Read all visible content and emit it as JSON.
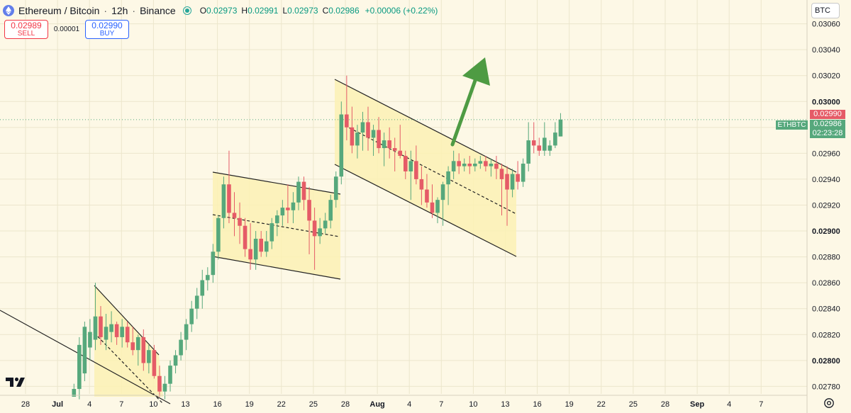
{
  "header": {
    "symbol": "Ethereum / Bitcoin",
    "interval": "12h",
    "exchange": "Binance",
    "open_label": "O",
    "open": "0.02973",
    "high_label": "H",
    "high": "0.02991",
    "low_label": "L",
    "low": "0.02973",
    "close_label": "C",
    "close": "0.02986",
    "change": "+0.00006 (+0.22%)"
  },
  "trade": {
    "sell_price": "0.02989",
    "sell_label": "SELL",
    "spread": "0.00001",
    "buy_price": "0.02990",
    "buy_label": "BUY"
  },
  "currency_label": "BTC",
  "ticker_label": "ETHBTC",
  "price_tags": {
    "ask": "0.02990",
    "last": "0.02986",
    "countdown": "02:23:28"
  },
  "colors": {
    "up": "#56a87c",
    "down": "#e55b67",
    "background": "#fdf8e6",
    "channel_fill": "#fbf1b4",
    "arrow": "#4e9b43"
  },
  "chart_data": {
    "type": "candlestick",
    "y_ticks": [
      "0.03060",
      "0.03040",
      "0.03020",
      "0.03000",
      "0.02980",
      "0.02960",
      "0.02940",
      "0.02920",
      "0.02900",
      "0.02880",
      "0.02860",
      "0.02840",
      "0.02820",
      "0.02800",
      "0.02780"
    ],
    "y_bold_ticks": [
      "0.03000",
      "0.02900",
      "0.02800"
    ],
    "ylim": [
      0.02772,
      0.03074
    ],
    "x_ticks": [
      "28",
      "Jul",
      "4",
      "7",
      "10",
      "13",
      "16",
      "19",
      "22",
      "25",
      "28",
      "Aug",
      "4",
      "7",
      "10",
      "13",
      "16",
      "19",
      "22",
      "25",
      "28",
      "Sep",
      "4",
      "7"
    ],
    "x_bold_ticks": [
      "Jul",
      "Aug",
      "Sep"
    ],
    "grid": true,
    "candles": [
      {
        "o": 0.02772,
        "h": 0.02782,
        "l": 0.02772,
        "c": 0.02778
      },
      {
        "o": 0.02778,
        "h": 0.02818,
        "l": 0.0277,
        "c": 0.02812
      },
      {
        "o": 0.0279,
        "h": 0.0283,
        "l": 0.02784,
        "c": 0.02826
      },
      {
        "o": 0.0281,
        "h": 0.02832,
        "l": 0.028,
        "c": 0.02822
      },
      {
        "o": 0.02816,
        "h": 0.0286,
        "l": 0.02808,
        "c": 0.02834
      },
      {
        "o": 0.02834,
        "h": 0.02842,
        "l": 0.02812,
        "c": 0.02818
      },
      {
        "o": 0.02816,
        "h": 0.02836,
        "l": 0.02808,
        "c": 0.02826
      },
      {
        "o": 0.02822,
        "h": 0.02838,
        "l": 0.02814,
        "c": 0.02828
      },
      {
        "o": 0.02828,
        "h": 0.0283,
        "l": 0.02812,
        "c": 0.02818
      },
      {
        "o": 0.02818,
        "h": 0.02832,
        "l": 0.0281,
        "c": 0.02826
      },
      {
        "o": 0.02826,
        "h": 0.0283,
        "l": 0.0281,
        "c": 0.02814
      },
      {
        "o": 0.02814,
        "h": 0.02826,
        "l": 0.02804,
        "c": 0.02808
      },
      {
        "o": 0.02808,
        "h": 0.0282,
        "l": 0.02796,
        "c": 0.02818
      },
      {
        "o": 0.02818,
        "h": 0.02824,
        "l": 0.02792,
        "c": 0.02798
      },
      {
        "o": 0.02798,
        "h": 0.02812,
        "l": 0.0279,
        "c": 0.02808
      },
      {
        "o": 0.02808,
        "h": 0.02812,
        "l": 0.02786,
        "c": 0.02788
      },
      {
        "o": 0.02788,
        "h": 0.02796,
        "l": 0.02772,
        "c": 0.02776
      },
      {
        "o": 0.02776,
        "h": 0.02788,
        "l": 0.0277,
        "c": 0.02782
      },
      {
        "o": 0.02782,
        "h": 0.028,
        "l": 0.02776,
        "c": 0.02796
      },
      {
        "o": 0.02796,
        "h": 0.02808,
        "l": 0.0279,
        "c": 0.02804
      },
      {
        "o": 0.02804,
        "h": 0.02822,
        "l": 0.028,
        "c": 0.02816
      },
      {
        "o": 0.02816,
        "h": 0.02832,
        "l": 0.02808,
        "c": 0.02828
      },
      {
        "o": 0.02828,
        "h": 0.02846,
        "l": 0.02822,
        "c": 0.0284
      },
      {
        "o": 0.0284,
        "h": 0.02856,
        "l": 0.02832,
        "c": 0.0285
      },
      {
        "o": 0.0285,
        "h": 0.0287,
        "l": 0.0284,
        "c": 0.02862
      },
      {
        "o": 0.02862,
        "h": 0.02872,
        "l": 0.02854,
        "c": 0.02866
      },
      {
        "o": 0.02866,
        "h": 0.0289,
        "l": 0.0286,
        "c": 0.02884
      },
      {
        "o": 0.02884,
        "h": 0.02912,
        "l": 0.02878,
        "c": 0.0291
      },
      {
        "o": 0.0291,
        "h": 0.02942,
        "l": 0.02902,
        "c": 0.02936
      },
      {
        "o": 0.02936,
        "h": 0.02962,
        "l": 0.02906,
        "c": 0.02914
      },
      {
        "o": 0.02914,
        "h": 0.0293,
        "l": 0.02896,
        "c": 0.0291
      },
      {
        "o": 0.0291,
        "h": 0.02922,
        "l": 0.0289,
        "c": 0.02904
      },
      {
        "o": 0.02904,
        "h": 0.0291,
        "l": 0.0288,
        "c": 0.02886
      },
      {
        "o": 0.02886,
        "h": 0.02906,
        "l": 0.0287,
        "c": 0.02878
      },
      {
        "o": 0.02878,
        "h": 0.029,
        "l": 0.0287,
        "c": 0.02894
      },
      {
        "o": 0.02894,
        "h": 0.029,
        "l": 0.0288,
        "c": 0.02884
      },
      {
        "o": 0.02884,
        "h": 0.029,
        "l": 0.0288,
        "c": 0.02892
      },
      {
        "o": 0.02892,
        "h": 0.0291,
        "l": 0.02886,
        "c": 0.02906
      },
      {
        "o": 0.02906,
        "h": 0.02916,
        "l": 0.02896,
        "c": 0.02912
      },
      {
        "o": 0.02912,
        "h": 0.02924,
        "l": 0.02904,
        "c": 0.02918
      },
      {
        "o": 0.02918,
        "h": 0.02936,
        "l": 0.02906,
        "c": 0.02916
      },
      {
        "o": 0.02916,
        "h": 0.0293,
        "l": 0.02906,
        "c": 0.02922
      },
      {
        "o": 0.02922,
        "h": 0.02942,
        "l": 0.02916,
        "c": 0.02938
      },
      {
        "o": 0.02938,
        "h": 0.02942,
        "l": 0.02916,
        "c": 0.02924
      },
      {
        "o": 0.02924,
        "h": 0.02934,
        "l": 0.02882,
        "c": 0.02908
      },
      {
        "o": 0.02908,
        "h": 0.02918,
        "l": 0.0287,
        "c": 0.02896
      },
      {
        "o": 0.02896,
        "h": 0.0291,
        "l": 0.0289,
        "c": 0.02902
      },
      {
        "o": 0.02902,
        "h": 0.02914,
        "l": 0.02898,
        "c": 0.02908
      },
      {
        "o": 0.02908,
        "h": 0.02928,
        "l": 0.02902,
        "c": 0.02924
      },
      {
        "o": 0.02924,
        "h": 0.02946,
        "l": 0.02918,
        "c": 0.02942
      },
      {
        "o": 0.02942,
        "h": 0.03,
        "l": 0.02936,
        "c": 0.0299
      },
      {
        "o": 0.0299,
        "h": 0.0302,
        "l": 0.0297,
        "c": 0.0298
      },
      {
        "o": 0.0298,
        "h": 0.02996,
        "l": 0.0296,
        "c": 0.02966
      },
      {
        "o": 0.02966,
        "h": 0.02982,
        "l": 0.02956,
        "c": 0.02976
      },
      {
        "o": 0.02976,
        "h": 0.02992,
        "l": 0.02962,
        "c": 0.02984
      },
      {
        "o": 0.02984,
        "h": 0.02996,
        "l": 0.02962,
        "c": 0.02972
      },
      {
        "o": 0.02972,
        "h": 0.02982,
        "l": 0.02958,
        "c": 0.02978
      },
      {
        "o": 0.02978,
        "h": 0.02988,
        "l": 0.0296,
        "c": 0.02964
      },
      {
        "o": 0.02964,
        "h": 0.02976,
        "l": 0.0295,
        "c": 0.0297
      },
      {
        "o": 0.0297,
        "h": 0.0298,
        "l": 0.02956,
        "c": 0.02964
      },
      {
        "o": 0.02964,
        "h": 0.02972,
        "l": 0.02946,
        "c": 0.02962
      },
      {
        "o": 0.02962,
        "h": 0.02982,
        "l": 0.02956,
        "c": 0.02958
      },
      {
        "o": 0.02958,
        "h": 0.02962,
        "l": 0.0294,
        "c": 0.02946
      },
      {
        "o": 0.02946,
        "h": 0.02962,
        "l": 0.02924,
        "c": 0.02954
      },
      {
        "o": 0.02954,
        "h": 0.02966,
        "l": 0.02936,
        "c": 0.0294
      },
      {
        "o": 0.0294,
        "h": 0.0295,
        "l": 0.0292,
        "c": 0.02932
      },
      {
        "o": 0.02932,
        "h": 0.02944,
        "l": 0.02918,
        "c": 0.02922
      },
      {
        "o": 0.02922,
        "h": 0.02936,
        "l": 0.0291,
        "c": 0.02914
      },
      {
        "o": 0.02914,
        "h": 0.02926,
        "l": 0.02906,
        "c": 0.02924
      },
      {
        "o": 0.02924,
        "h": 0.02938,
        "l": 0.02904,
        "c": 0.02936
      },
      {
        "o": 0.02936,
        "h": 0.0295,
        "l": 0.0292,
        "c": 0.02946
      },
      {
        "o": 0.02946,
        "h": 0.02962,
        "l": 0.0294,
        "c": 0.02954
      },
      {
        "o": 0.02954,
        "h": 0.0296,
        "l": 0.02944,
        "c": 0.0295
      },
      {
        "o": 0.0295,
        "h": 0.02956,
        "l": 0.02946,
        "c": 0.02952
      },
      {
        "o": 0.02952,
        "h": 0.02958,
        "l": 0.02944,
        "c": 0.0295
      },
      {
        "o": 0.0295,
        "h": 0.02956,
        "l": 0.02946,
        "c": 0.02952
      },
      {
        "o": 0.02952,
        "h": 0.02958,
        "l": 0.02948,
        "c": 0.02954
      },
      {
        "o": 0.02954,
        "h": 0.02958,
        "l": 0.02946,
        "c": 0.0295
      },
      {
        "o": 0.0295,
        "h": 0.02956,
        "l": 0.02942,
        "c": 0.02952
      },
      {
        "o": 0.02952,
        "h": 0.02958,
        "l": 0.0294,
        "c": 0.02948
      },
      {
        "o": 0.02948,
        "h": 0.02952,
        "l": 0.02912,
        "c": 0.0294
      },
      {
        "o": 0.02944,
        "h": 0.0295,
        "l": 0.02904,
        "c": 0.02932
      },
      {
        "o": 0.02932,
        "h": 0.02948,
        "l": 0.02926,
        "c": 0.02944
      },
      {
        "o": 0.02944,
        "h": 0.02954,
        "l": 0.02932,
        "c": 0.02938
      },
      {
        "o": 0.02938,
        "h": 0.02956,
        "l": 0.02934,
        "c": 0.02952
      },
      {
        "o": 0.02952,
        "h": 0.02984,
        "l": 0.02946,
        "c": 0.0297
      },
      {
        "o": 0.0297,
        "h": 0.02984,
        "l": 0.0296,
        "c": 0.02966
      },
      {
        "o": 0.02966,
        "h": 0.02972,
        "l": 0.02958,
        "c": 0.02962
      },
      {
        "o": 0.02962,
        "h": 0.02984,
        "l": 0.02958,
        "c": 0.02972
      },
      {
        "o": 0.02962,
        "h": 0.0297,
        "l": 0.02958,
        "c": 0.02966
      },
      {
        "o": 0.02966,
        "h": 0.02984,
        "l": 0.02964,
        "c": 0.02976
      },
      {
        "o": 0.02973,
        "h": 0.02991,
        "l": 0.02973,
        "c": 0.02986
      }
    ]
  }
}
